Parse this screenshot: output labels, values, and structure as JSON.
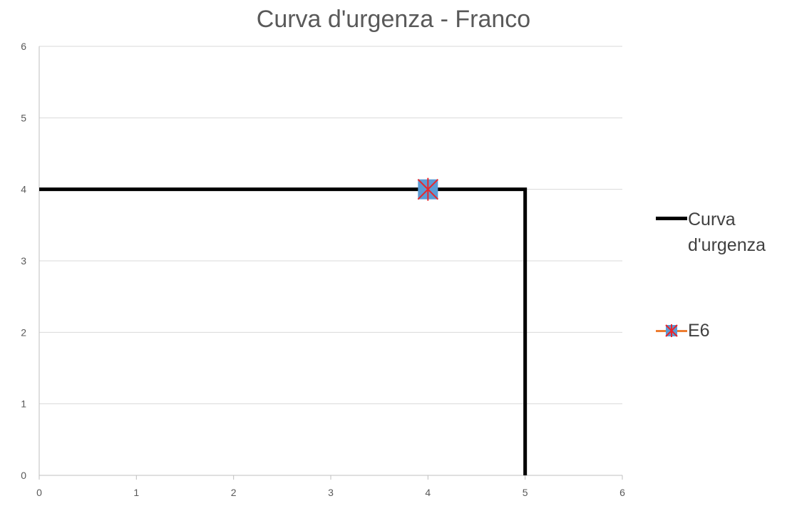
{
  "chart_data": {
    "type": "line",
    "title": "Curva d'urgenza - Franco",
    "xlabel": "",
    "ylabel": "",
    "xlim": [
      0,
      6
    ],
    "ylim": [
      0,
      6
    ],
    "x_ticks": [
      0,
      1,
      2,
      3,
      4,
      5,
      6
    ],
    "y_ticks": [
      0,
      1,
      2,
      3,
      4,
      5,
      6
    ],
    "grid": "horizontal",
    "legend_position": "right",
    "series": [
      {
        "name": "Curva d'urgenza",
        "color": "#000000",
        "points": [
          [
            0,
            4
          ],
          [
            5,
            4
          ],
          [
            5,
            0
          ]
        ]
      },
      {
        "name": "E6",
        "color": "#5B9BD5",
        "line_color": "#ED7D31",
        "marker": "square-x",
        "marker_cross_color": "#E8262C",
        "points": [
          [
            4,
            4
          ]
        ]
      }
    ]
  },
  "legend": {
    "items": [
      {
        "label": "Curva d'urgenza"
      },
      {
        "label": "E6"
      }
    ]
  }
}
